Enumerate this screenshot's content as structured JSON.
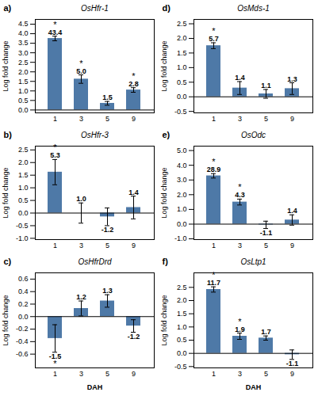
{
  "chart_data": [
    {
      "type": "bar",
      "panel_label": "a)",
      "title": "OsHfr-1",
      "categories": [
        "1",
        "3",
        "5",
        "9"
      ],
      "values": [
        3.75,
        1.62,
        0.35,
        1.05
      ],
      "errors": [
        0.12,
        0.22,
        0.1,
        0.12
      ],
      "color": "#4e79a7",
      "ylim": [
        -0.15,
        4.75
      ],
      "yticks": [
        {
          "value": 0,
          "label": "0.0"
        },
        0.5,
        {
          "value": 1,
          "label": "1.0"
        },
        1.5,
        {
          "value": 2,
          "label": "2.0"
        },
        2.5,
        {
          "value": 3,
          "label": "3.0"
        },
        3.5,
        {
          "value": 4,
          "label": "4.0"
        },
        4.5
      ],
      "ylabel": "Log fold change",
      "annotations": [
        {
          "x": "1",
          "text": "43.4",
          "star": "*"
        },
        {
          "x": "3",
          "text": "5.0",
          "star": "*"
        },
        {
          "x": "5",
          "text": "1.5"
        },
        {
          "x": "9",
          "text": "2.8",
          "star": "*"
        }
      ]
    },
    {
      "type": "bar",
      "panel_label": "b)",
      "title": "OsHfr-3",
      "categories": [
        "1",
        "3",
        "5",
        "9"
      ],
      "values": [
        1.62,
        0.0,
        -0.15,
        0.22
      ],
      "errors": [
        0.5,
        0.4,
        0.35,
        0.45
      ],
      "color": "#4e79a7",
      "ylim": [
        -1.05,
        2.65
      ],
      "yticks": [
        {
          "value": -1,
          "label": "-1.0"
        },
        -0.5,
        {
          "value": 0,
          "label": "0.0"
        },
        0.5,
        {
          "value": 1,
          "label": "1.0"
        },
        1.5,
        {
          "value": 2,
          "label": "2.0"
        },
        2.5
      ],
      "ylabel": "Log fold change",
      "annotations": [
        {
          "x": "1",
          "text": "5.3",
          "star": "*"
        },
        {
          "x": "3",
          "text": "1.0"
        },
        {
          "x": "5",
          "text": "-1.2"
        },
        {
          "x": "9",
          "text": "1.4"
        }
      ]
    },
    {
      "type": "bar",
      "panel_label": "c)",
      "title": "OsHfrDrd",
      "categories": [
        "1",
        "3",
        "5",
        "9"
      ],
      "values": [
        -0.35,
        0.13,
        0.25,
        -0.15
      ],
      "errors": [
        0.22,
        0.12,
        0.1,
        0.1
      ],
      "color": "#4e79a7",
      "ylim": [
        -0.82,
        0.7
      ],
      "yticks": [
        -0.6,
        -0.4,
        -0.2,
        {
          "value": 0,
          "label": "0.0"
        },
        0.2,
        0.4,
        0.6
      ],
      "ylabel": "Log fold change",
      "xlabel": "DAH",
      "annotations": [
        {
          "x": "1",
          "text": "-1.5",
          "star": "*"
        },
        {
          "x": "3",
          "text": "1.2"
        },
        {
          "x": "5",
          "text": "1.3"
        },
        {
          "x": "9",
          "text": "-1.2"
        }
      ]
    },
    {
      "type": "bar",
      "panel_label": "d)",
      "title": "OsMds-1",
      "categories": [
        "1",
        "3",
        "5",
        "9"
      ],
      "values": [
        1.75,
        0.3,
        0.1,
        0.28
      ],
      "errors": [
        0.1,
        0.22,
        0.15,
        0.2
      ],
      "color": "#4e79a7",
      "ylim": [
        -0.55,
        2.65
      ],
      "yticks": [
        -0.5,
        {
          "value": 0,
          "label": "0.0"
        },
        0.5,
        {
          "value": 1,
          "label": "1.0"
        },
        1.5,
        {
          "value": 2,
          "label": "2.0"
        },
        2.5
      ],
      "ylabel": "Log fold change",
      "annotations": [
        {
          "x": "1",
          "text": "5.7",
          "star": "*"
        },
        {
          "x": "3",
          "text": "1.4"
        },
        {
          "x": "5",
          "text": "1.1"
        },
        {
          "x": "9",
          "text": "1.3"
        }
      ]
    },
    {
      "type": "bar",
      "panel_label": "e)",
      "title": "OsOdc",
      "categories": [
        "1",
        "3",
        "5",
        "9"
      ],
      "values": [
        3.28,
        1.5,
        -0.05,
        0.28
      ],
      "errors": [
        0.15,
        0.2,
        0.25,
        0.35
      ],
      "color": "#4e79a7",
      "ylim": [
        -1.05,
        5.3
      ],
      "yticks": [
        {
          "value": -1,
          "label": "-1.0"
        },
        {
          "value": 0,
          "label": "0.0"
        },
        {
          "value": 1,
          "label": "1.0"
        },
        {
          "value": 2,
          "label": "2.0"
        },
        {
          "value": 3,
          "label": "3.0"
        },
        {
          "value": 4,
          "label": "4.0"
        },
        {
          "value": 5,
          "label": "5.0"
        }
      ],
      "ylabel": "Log fold change",
      "annotations": [
        {
          "x": "1",
          "text": "28.9",
          "star": "*"
        },
        {
          "x": "3",
          "text": "4.3",
          "star": "*"
        },
        {
          "x": "5",
          "text": "-1.1"
        },
        {
          "x": "9",
          "text": "1.4"
        }
      ]
    },
    {
      "type": "bar",
      "panel_label": "f)",
      "title": "OsLtp1",
      "categories": [
        "1",
        "3",
        "5",
        "9"
      ],
      "values": [
        2.42,
        0.65,
        0.58,
        -0.05
      ],
      "errors": [
        0.1,
        0.12,
        0.08,
        0.18
      ],
      "color": "#4e79a7",
      "ylim": [
        -0.55,
        3.05
      ],
      "yticks": [
        -0.5,
        {
          "value": 0,
          "label": "0.0"
        },
        0.5,
        {
          "value": 1,
          "label": "1.0"
        },
        1.5,
        {
          "value": 2,
          "label": "2.0"
        },
        2.5
      ],
      "ylabel": "Log fold change",
      "xlabel": "DAH",
      "annotations": [
        {
          "x": "1",
          "text": "11.7",
          "star": "*"
        },
        {
          "x": "3",
          "text": "1.9",
          "star": "*"
        },
        {
          "x": "5",
          "text": "1.7"
        },
        {
          "x": "9",
          "text": "-1.1"
        }
      ]
    }
  ]
}
